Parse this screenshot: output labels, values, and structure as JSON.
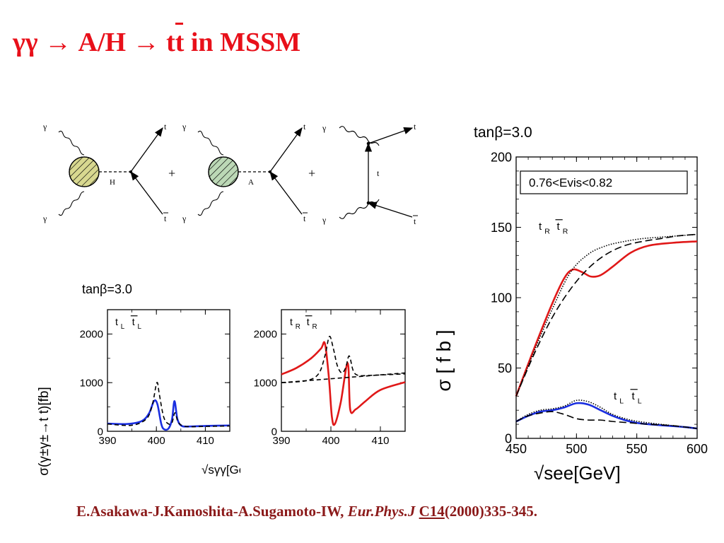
{
  "slide": {
    "title_pre": "γγ → A/H → t",
    "title_tbar": "t",
    "title_post": " in MSSM",
    "citation_authors": "E.Asakawa-J.Kamoshita-A.Sugamoto-IW, ",
    "citation_journal": "Eur.Phys.J",
    "citation_space": " ",
    "citation_volume": "C14",
    "citation_pages": "(2000)335-345."
  },
  "diagrams": {
    "gamma": "γ",
    "top": "t",
    "higgs_h": "H",
    "higgs_a": "A",
    "plus": "+",
    "blob_h_color": "#d8d890",
    "blob_a_color": "#bcd8b6"
  },
  "chart_data": [
    {
      "type": "line",
      "header": "tanβ=3.0",
      "label": "t L  t L",
      "ylabel": "σ(γ±γ±→t t)[fb]",
      "xlabel": "√sγγ[GeV]",
      "xlim": [
        390,
        415
      ],
      "ylim": [
        0,
        2500
      ],
      "xticks": [
        390,
        400,
        410
      ],
      "yticks": [
        0,
        1000,
        2000
      ],
      "series": [
        {
          "style": "solid",
          "color": "#1a2ee0",
          "x": [
            390,
            394,
            397,
            398.5,
            399.5,
            400.2,
            401,
            401.6,
            402.5,
            403.2,
            403.7,
            404.3,
            405.2,
            407,
            410,
            415
          ],
          "y": [
            160,
            150,
            210,
            370,
            620,
            560,
            150,
            40,
            60,
            250,
            620,
            250,
            110,
            100,
            110,
            120
          ]
        },
        {
          "style": "dashed",
          "color": "#000000",
          "x": [
            390,
            395,
            398,
            399.2,
            400.1,
            400.6,
            401.5,
            402.5,
            403.2,
            403.8,
            404.5,
            406,
            410,
            415
          ],
          "y": [
            150,
            125,
            260,
            560,
            1000,
            760,
            290,
            150,
            180,
            380,
            180,
            100,
            100,
            110
          ]
        }
      ]
    },
    {
      "type": "line",
      "label": "t R  t R",
      "xlim": [
        390,
        415
      ],
      "ylim": [
        0,
        2500
      ],
      "xticks": [
        390,
        400,
        410
      ],
      "yticks": [
        0,
        1000,
        2000
      ],
      "series": [
        {
          "style": "solid",
          "color": "#e01818",
          "x": [
            390,
            393,
            396,
            398,
            398.8,
            399.6,
            400.2,
            400.8,
            402,
            403.4,
            403.9,
            405,
            407,
            410,
            415
          ],
          "y": [
            1170,
            1300,
            1500,
            1700,
            1800,
            1100,
            300,
            150,
            600,
            1400,
            450,
            450,
            620,
            850,
            1010
          ]
        },
        {
          "style": "dashed",
          "color": "#000000",
          "x": [
            390,
            395,
            397.5,
            398.8,
            399.7,
            400.5,
            401.3,
            402.2,
            403,
            403.7,
            404.5,
            405.5,
            408,
            415
          ],
          "y": [
            1000,
            1040,
            1180,
            1550,
            1950,
            1700,
            1350,
            1200,
            1310,
            1550,
            1250,
            1150,
            1150,
            1180
          ]
        },
        {
          "style": "dashed",
          "color": "#000000",
          "x": [
            390,
            415
          ],
          "y": [
            1000,
            1200
          ]
        }
      ]
    },
    {
      "type": "line",
      "header": "tanβ=3.0",
      "annotation": "0.76<Evis<0.82",
      "label_r": "t R  t R",
      "label_l": "t L  t L",
      "ylabel": "σ [ f b ]",
      "xlabel": "√see[GeV]",
      "xlim": [
        450,
        600
      ],
      "ylim": [
        0,
        200
      ],
      "xticks": [
        450,
        500,
        550,
        600
      ],
      "yticks": [
        0,
        50,
        100,
        150,
        200
      ],
      "series": [
        {
          "name": "tR solid",
          "style": "solid",
          "color": "#e01818",
          "x": [
            450,
            465,
            480,
            490,
            497,
            505,
            512,
            520,
            530,
            545,
            560,
            580,
            600
          ],
          "y": [
            30,
            64,
            96,
            114,
            120,
            118,
            115,
            116,
            122,
            132,
            137,
            139,
            140
          ]
        },
        {
          "name": "tR dashed",
          "style": "dashed",
          "color": "#000000",
          "x": [
            450,
            465,
            480,
            495,
            510,
            525,
            540,
            555,
            570,
            585,
            600
          ],
          "y": [
            30,
            60,
            86,
            106,
            121,
            131,
            137,
            140,
            142,
            144,
            145
          ]
        },
        {
          "name": "tR dotted",
          "style": "dotted",
          "color": "#000000",
          "x": [
            450,
            465,
            480,
            495,
            510,
            525,
            540,
            555,
            570,
            585,
            600
          ],
          "y": [
            30,
            62,
            92,
            118,
            131,
            137,
            140,
            142,
            143,
            144,
            145
          ]
        },
        {
          "name": "tL solid",
          "style": "solid",
          "color": "#1a2ee0",
          "x": [
            450,
            460,
            470,
            480,
            490,
            500,
            510,
            520,
            530,
            540,
            550,
            560,
            575,
            590,
            600
          ],
          "y": [
            12,
            16,
            19,
            20,
            22,
            25,
            24,
            20,
            16,
            13,
            11,
            10,
            9,
            8,
            7
          ]
        },
        {
          "name": "tL dashed",
          "style": "dashed",
          "color": "#000000",
          "x": [
            450,
            460,
            470,
            480,
            490,
            500,
            510,
            520,
            530,
            545,
            560,
            580,
            600
          ],
          "y": [
            12,
            16,
            18,
            19,
            17,
            14,
            13,
            13,
            12,
            11,
            10,
            9,
            7
          ]
        },
        {
          "name": "tL dotted",
          "style": "dotted",
          "color": "#000000",
          "x": [
            450,
            460,
            470,
            480,
            490,
            500,
            510,
            520,
            530,
            545,
            560,
            580,
            600
          ],
          "y": [
            12,
            17,
            20,
            21,
            23,
            27,
            26,
            22,
            17,
            13,
            11,
            9,
            7
          ]
        }
      ]
    }
  ]
}
